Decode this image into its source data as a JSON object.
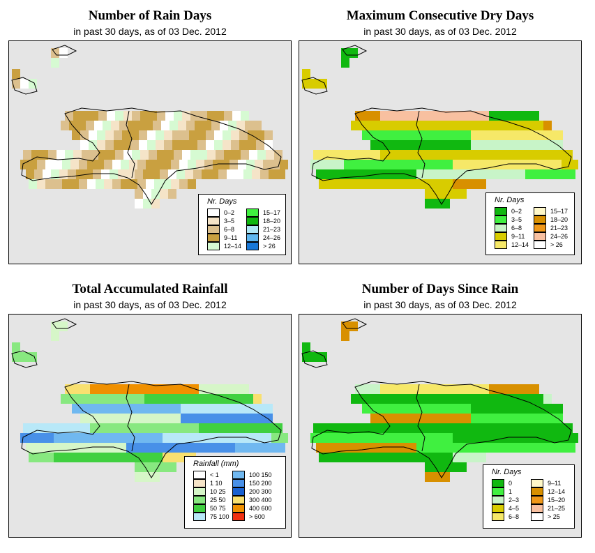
{
  "panels": [
    {
      "id": "rain-days",
      "title": "Number of Rain Days",
      "subtitle": "in past 30 days, as of  03 Dec. 2012",
      "legend": {
        "title": "Nr. Days",
        "items": [
          {
            "label": "0–2",
            "color": "#ffffff"
          },
          {
            "label": "3–5",
            "color": "#f5e4c8"
          },
          {
            "label": "6–8",
            "color": "#dcc08e"
          },
          {
            "label": "9–11",
            "color": "#c9a040"
          },
          {
            "label": "12–14",
            "color": "#d6fad2"
          },
          {
            "label": "15–17",
            "color": "#40f040"
          },
          {
            "label": "18–20",
            "color": "#10b810"
          },
          {
            "label": "21–23",
            "color": "#b0e8f6"
          },
          {
            "label": "24–26",
            "color": "#60b8f0"
          },
          {
            "label": "> 26",
            "color": "#1878d8"
          }
        ]
      }
    },
    {
      "id": "dry-days",
      "title": "Maximum Consecutive Dry Days",
      "subtitle": "in past 30 days, as of  03 Dec. 2012",
      "legend": {
        "title": "Nr. Days",
        "items": [
          {
            "label": "0–2",
            "color": "#10b810"
          },
          {
            "label": "3–5",
            "color": "#40f040"
          },
          {
            "label": "6–8",
            "color": "#c8f4c8"
          },
          {
            "label": "9–11",
            "color": "#d8cc00"
          },
          {
            "label": "12–14",
            "color": "#f6e868"
          },
          {
            "label": "15–17",
            "color": "#fff8c8"
          },
          {
            "label": "18–20",
            "color": "#d89000"
          },
          {
            "label": "21–23",
            "color": "#f09818"
          },
          {
            "label": "24–26",
            "color": "#f8c0a0"
          },
          {
            "label": "> 26",
            "color": "#ffffff"
          }
        ]
      }
    },
    {
      "id": "rainfall",
      "title": "Total Accumulated Rainfall",
      "subtitle": "in past 30 days, as of  03 Dec. 2012",
      "legend": {
        "title": "Rainfall (mm)",
        "items": [
          {
            "label": "< 1",
            "color": "#ffffff"
          },
          {
            "label": "1    10",
            "color": "#f6e4c8"
          },
          {
            "label": "10   25",
            "color": "#d6f6c8"
          },
          {
            "label": "25   50",
            "color": "#88e880"
          },
          {
            "label": "50   75",
            "color": "#40d040"
          },
          {
            "label": "75  100",
            "color": "#b8e8f8"
          },
          {
            "label": "100  150",
            "color": "#70b8f0"
          },
          {
            "label": "150  200",
            "color": "#4890e8"
          },
          {
            "label": "200  300",
            "color": "#1860d0"
          },
          {
            "label": "300  400",
            "color": "#f8e070"
          },
          {
            "label": "400  600",
            "color": "#f09000"
          },
          {
            "label": "> 600",
            "color": "#f03010"
          }
        ]
      }
    },
    {
      "id": "since-rain",
      "title": "Number of Days Since Rain",
      "subtitle": "in past 30 days, as of  03 Dec. 2012",
      "legend": {
        "title": "Nr. Days",
        "items": [
          {
            "label": "0",
            "color": "#10b810"
          },
          {
            "label": "1",
            "color": "#40f040"
          },
          {
            "label": "2–3",
            "color": "#c8f4c8"
          },
          {
            "label": "4–5",
            "color": "#d8cc00"
          },
          {
            "label": "6–8",
            "color": "#f6e868"
          },
          {
            "label": "9–11",
            "color": "#fff8c8"
          },
          {
            "label": "12–14",
            "color": "#d89000"
          },
          {
            "label": "15–20",
            "color": "#f09818"
          },
          {
            "label": "21–25",
            "color": "#f8c0a0"
          },
          {
            "label": "> 25",
            "color": "#ffffff"
          }
        ]
      }
    }
  ]
}
